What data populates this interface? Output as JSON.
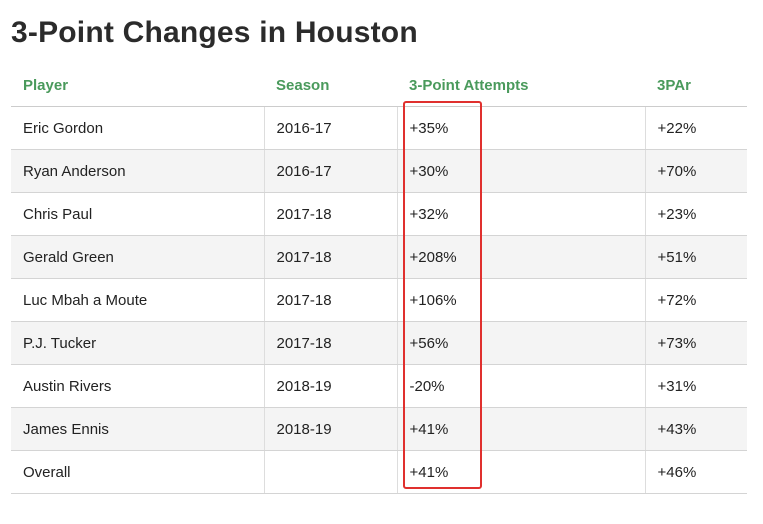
{
  "title": "3-Point Changes in Houston",
  "columns": [
    "Player",
    "Season",
    "3-Point Attempts",
    "3PAr"
  ],
  "rows": [
    {
      "player": "Eric Gordon",
      "season": "2016-17",
      "attempts": "+35%",
      "par": "+22%"
    },
    {
      "player": "Ryan Anderson",
      "season": "2016-17",
      "attempts": "+30%",
      "par": "+70%"
    },
    {
      "player": "Chris Paul",
      "season": "2017-18",
      "attempts": "+32%",
      "par": "+23%"
    },
    {
      "player": "Gerald Green",
      "season": "2017-18",
      "attempts": "+208%",
      "par": "+51%"
    },
    {
      "player": "Luc Mbah a Moute",
      "season": "2017-18",
      "attempts": "+106%",
      "par": "+72%"
    },
    {
      "player": "P.J. Tucker",
      "season": "2017-18",
      "attempts": "+56%",
      "par": "+73%"
    },
    {
      "player": "Austin Rivers",
      "season": "2018-19",
      "attempts": "-20%",
      "par": "+31%"
    },
    {
      "player": "James Ennis",
      "season": "2018-19",
      "attempts": "+41%",
      "par": "+43%"
    },
    {
      "player": "Overall",
      "season": "",
      "attempts": "+41%",
      "par": "+46%"
    }
  ],
  "colors": {
    "header_text": "#4a9a5c",
    "highlight_border": "#e0302e",
    "alt_row_bg": "#f4f4f4"
  }
}
